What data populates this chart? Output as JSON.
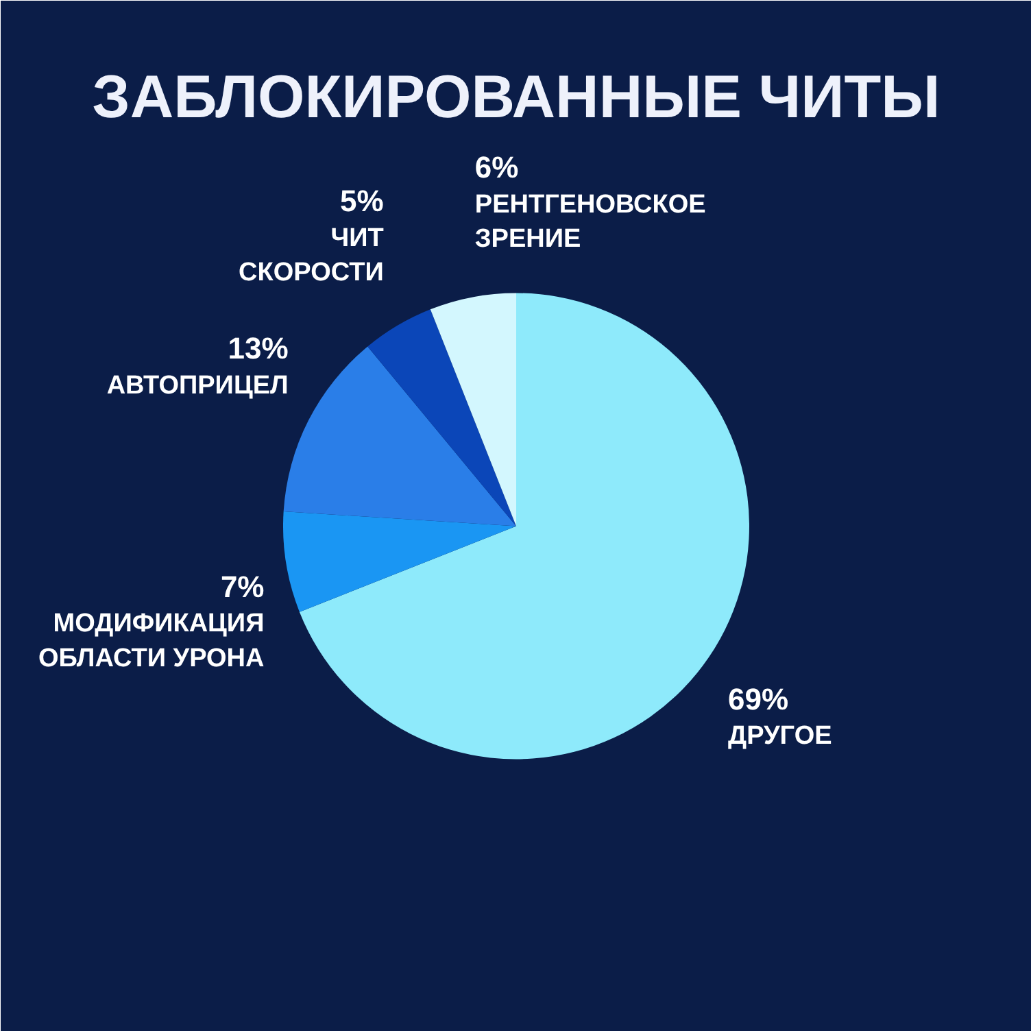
{
  "chart_data": {
    "type": "pie",
    "title": "ЗАБЛОКИРОВАННЫЕ ЧИТЫ",
    "categories": [
      "ДРУГОЕ",
      "МОДИФИКАЦИЯ\nОБЛАСТИ УРОНА",
      "АВТОПРИЦЕЛ",
      "ЧИТ\nСКОРОСТИ",
      "РЕНТГЕНОВСКОЕ\nЗРЕНИЕ"
    ],
    "values": [
      69,
      7,
      13,
      5,
      6
    ],
    "colors": [
      "#8eeafb",
      "#1a96f3",
      "#2a7ee8",
      "#0b46b8",
      "#d3f7fe"
    ],
    "value_labels": [
      "69%",
      "7%",
      "13%",
      "5%",
      "6%"
    ]
  }
}
